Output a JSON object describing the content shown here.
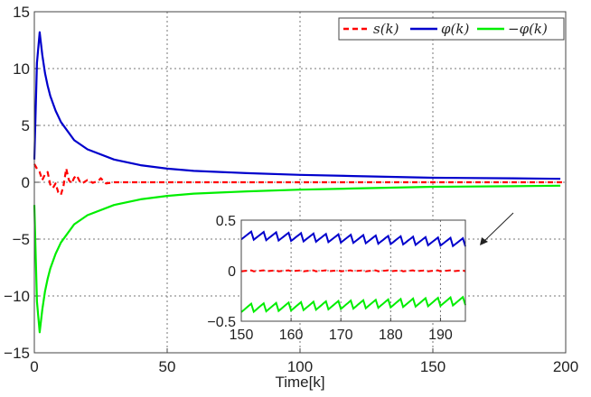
{
  "chart_data": [
    {
      "type": "line",
      "title": "",
      "xlabel": "Time[k]",
      "ylabel": "",
      "xlim": [
        0,
        200
      ],
      "ylim": [
        -15,
        15
      ],
      "xticks": [
        "0",
        "50",
        "100",
        "150",
        "200"
      ],
      "yticks": [
        "15",
        "10",
        "5",
        "0",
        "−5",
        "−10",
        "−15"
      ],
      "grid": true,
      "legend_position": "top-right",
      "colors": {
        "s": "#ff0000",
        "phi": "#0000cc",
        "negphi": "#00ee00"
      },
      "series": [
        {
          "name": "s(k)",
          "style": "dashed",
          "points": [
            [
              0,
              1.6
            ],
            [
              1,
              1.2
            ],
            [
              2,
              0.9
            ],
            [
              3,
              0.2
            ],
            [
              4,
              0.7
            ],
            [
              5,
              0.9
            ],
            [
              6,
              -0.2
            ],
            [
              7,
              -0.5
            ],
            [
              8,
              -0.1
            ],
            [
              9,
              -0.9
            ],
            [
              10,
              -1.1
            ],
            [
              11,
              -0.3
            ],
            [
              12,
              1.2
            ],
            [
              13,
              0.2
            ],
            [
              14,
              -0.1
            ],
            [
              15,
              0.4
            ],
            [
              16,
              0.6
            ],
            [
              17,
              0.1
            ],
            [
              18,
              -0.1
            ],
            [
              20,
              0.2
            ],
            [
              22,
              -0.05
            ],
            [
              24,
              0.1
            ],
            [
              25,
              0.35
            ],
            [
              27,
              -0.1
            ],
            [
              30,
              0.0
            ],
            [
              40,
              0.0
            ],
            [
              60,
              0.0
            ],
            [
              80,
              0.0
            ],
            [
              100,
              0.0
            ],
            [
              150,
              0.0
            ],
            [
              200,
              0.0
            ]
          ]
        },
        {
          "name": "φ(k)",
          "points": [
            [
              0,
              2.0
            ],
            [
              1,
              10.5
            ],
            [
              2,
              13.2
            ],
            [
              3,
              11.2
            ],
            [
              4,
              9.6
            ],
            [
              5,
              8.5
            ],
            [
              6,
              7.6
            ],
            [
              8,
              6.3
            ],
            [
              10,
              5.3
            ],
            [
              15,
              3.7
            ],
            [
              20,
              2.9
            ],
            [
              30,
              2.0
            ],
            [
              40,
              1.5
            ],
            [
              50,
              1.2
            ],
            [
              60,
              1.0
            ],
            [
              80,
              0.8
            ],
            [
              100,
              0.65
            ],
            [
              120,
              0.55
            ],
            [
              150,
              0.4
            ],
            [
              180,
              0.35
            ],
            [
              198,
              0.3
            ]
          ]
        },
        {
          "name": "−φ(k)",
          "points": [
            [
              0,
              -2.0
            ],
            [
              1,
              -10.5
            ],
            [
              2,
              -13.2
            ],
            [
              3,
              -11.2
            ],
            [
              4,
              -9.6
            ],
            [
              5,
              -8.5
            ],
            [
              6,
              -7.6
            ],
            [
              8,
              -6.3
            ],
            [
              10,
              -5.3
            ],
            [
              15,
              -3.7
            ],
            [
              20,
              -2.9
            ],
            [
              30,
              -2.0
            ],
            [
              40,
              -1.5
            ],
            [
              50,
              -1.2
            ],
            [
              60,
              -1.0
            ],
            [
              80,
              -0.8
            ],
            [
              100,
              -0.65
            ],
            [
              120,
              -0.55
            ],
            [
              150,
              -0.4
            ],
            [
              180,
              -0.35
            ],
            [
              198,
              -0.3
            ]
          ]
        }
      ]
    },
    {
      "type": "line",
      "title": "",
      "xlim": [
        150,
        195
      ],
      "ylim": [
        -0.5,
        0.5
      ],
      "xticks": [
        "150",
        "160",
        "170",
        "180",
        "190"
      ],
      "yticks": [
        "0.5",
        "0",
        "−0.5"
      ],
      "grid": true,
      "series_style": [
        "dashed",
        "solid",
        "solid"
      ],
      "series_ranges": [
        {
          "start": 0.0,
          "amp": 0.003,
          "trend": 0.0
        },
        {
          "start": 0.36,
          "amp": 0.025,
          "trend": -0.07
        },
        {
          "start": -0.36,
          "amp": 0.025,
          "trend": 0.07
        }
      ]
    }
  ],
  "legend": {
    "entries": [
      "s(k)",
      "φ(k)",
      "−φ(k)"
    ]
  }
}
